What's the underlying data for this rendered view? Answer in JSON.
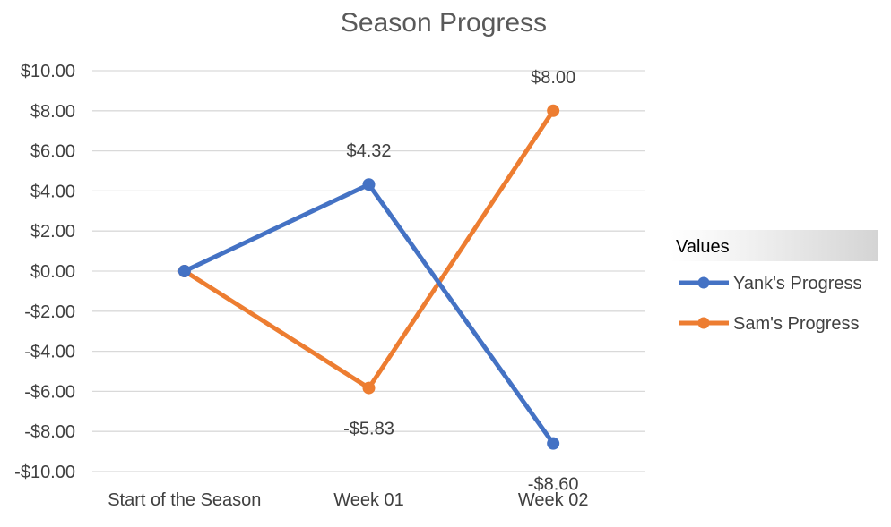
{
  "chart_data": {
    "type": "line",
    "title": "Season Progress",
    "xlabel": "",
    "ylabel": "",
    "categories": [
      "Start of the Season",
      "Week 01",
      "Week 02"
    ],
    "ylim": [
      -10,
      10
    ],
    "ytick_step": 2,
    "y_tick_labels": [
      "$10.00",
      "$8.00",
      "$6.00",
      "$4.00",
      "$2.00",
      "$0.00",
      "-$2.00",
      "-$4.00",
      "-$6.00",
      "-$8.00",
      "-$10.00"
    ],
    "grid": true,
    "legend": {
      "title": "Values",
      "placement": "right"
    },
    "series": [
      {
        "name": "Yank's Progress",
        "color": "#4472c4",
        "values": [
          0,
          4.32,
          -8.6
        ],
        "data_labels": [
          "",
          "$4.32",
          "-$8.60"
        ]
      },
      {
        "name": "Sam's Progress",
        "color": "#ed7d31",
        "values": [
          0,
          -5.83,
          8.0
        ],
        "data_labels": [
          "",
          "-$5.83",
          "$8.00"
        ]
      }
    ]
  }
}
